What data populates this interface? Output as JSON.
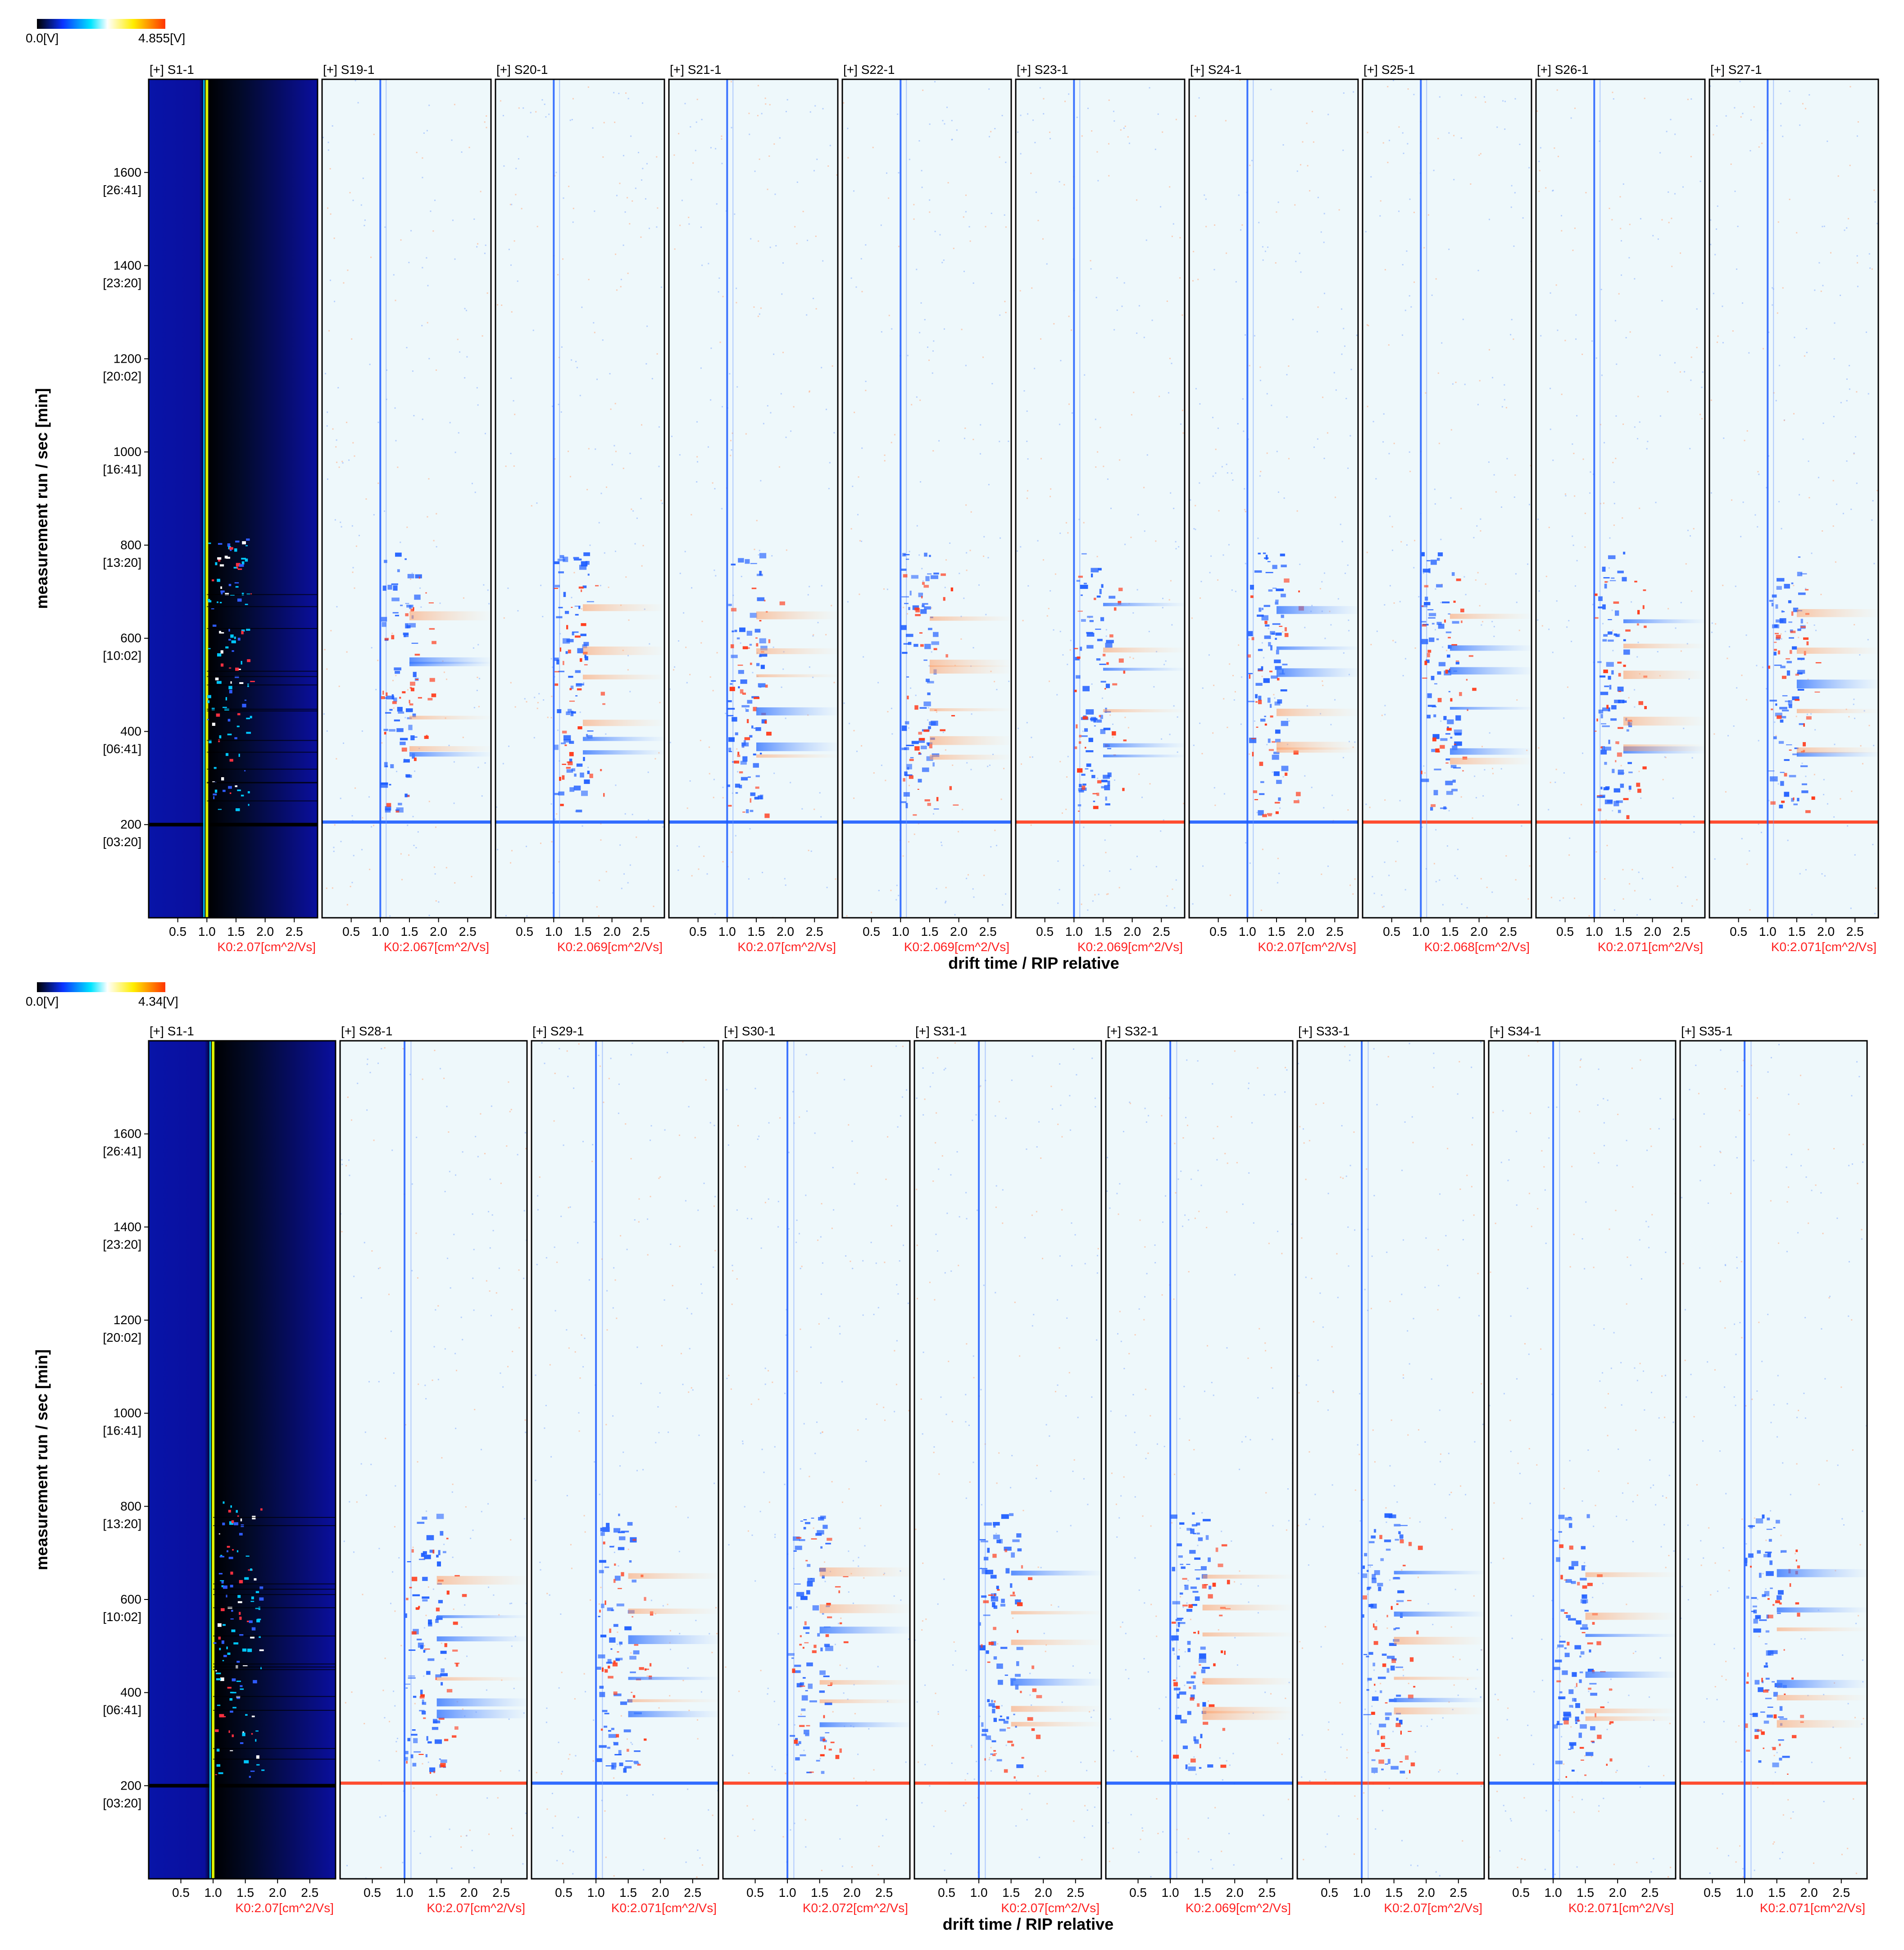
{
  "figure": {
    "panels": [
      {
        "colorbar": {
          "min_label": "0.0[V]",
          "max_label": "4.855[V]",
          "colors": [
            "#000000",
            "#0a32ff",
            "#00e5ff",
            "#ffffff",
            "#ffee00",
            "#ff3300"
          ]
        },
        "y_axis_label": "measurement run / sec [min]",
        "x_axis_label": "drift time / RIP relative",
        "samples": [
          {
            "title": "[+] S1-1",
            "k0": "K0:2.07[cm^2/Vs]",
            "reference": true
          },
          {
            "title": "[+] S19-1",
            "k0": "K0:2.067[cm^2/Vs]"
          },
          {
            "title": "[+] S20-1",
            "k0": "K0:2.069[cm^2/Vs]"
          },
          {
            "title": "[+] S21-1",
            "k0": "K0:2.07[cm^2/Vs]"
          },
          {
            "title": "[+] S22-1",
            "k0": "K0:2.069[cm^2/Vs]"
          },
          {
            "title": "[+] S23-1",
            "k0": "K0:2.069[cm^2/Vs]"
          },
          {
            "title": "[+] S24-1",
            "k0": "K0:2.07[cm^2/Vs]"
          },
          {
            "title": "[+] S25-1",
            "k0": "K0:2.068[cm^2/Vs]"
          },
          {
            "title": "[+] S26-1",
            "k0": "K0:2.071[cm^2/Vs]"
          },
          {
            "title": "[+] S27-1",
            "k0": "K0:2.071[cm^2/Vs]"
          }
        ]
      },
      {
        "colorbar": {
          "min_label": "0.0[V]",
          "max_label": "4.34[V]",
          "colors": [
            "#000000",
            "#0a32ff",
            "#00e5ff",
            "#ffffff",
            "#ffee00",
            "#ff3300"
          ]
        },
        "y_axis_label": "measurement run / sec [min]",
        "x_axis_label": "drift time / RIP relative",
        "samples": [
          {
            "title": "[+] S1-1",
            "k0": "K0:2.07[cm^2/Vs]",
            "reference": true
          },
          {
            "title": "[+] S28-1",
            "k0": "K0:2.07[cm^2/Vs]"
          },
          {
            "title": "[+] S29-1",
            "k0": "K0:2.071[cm^2/Vs]"
          },
          {
            "title": "[+] S30-1",
            "k0": "K0:2.072[cm^2/Vs]"
          },
          {
            "title": "[+] S31-1",
            "k0": "K0:2.07[cm^2/Vs]"
          },
          {
            "title": "[+] S32-1",
            "k0": "K0:2.069[cm^2/Vs]"
          },
          {
            "title": "[+] S33-1",
            "k0": "K0:2.07[cm^2/Vs]"
          },
          {
            "title": "[+] S34-1",
            "k0": "K0:2.071[cm^2/Vs]"
          },
          {
            "title": "[+] S35-1",
            "k0": "K0:2.071[cm^2/Vs]"
          }
        ]
      }
    ]
  },
  "chart_data": {
    "type": "heatmap",
    "x_ticks": [
      "0.5",
      "1.0",
      "1.5",
      "2.0",
      "2.5"
    ],
    "xlim": [
      0,
      2.9
    ],
    "y_ticks": [
      {
        "value": 200,
        "time": "[03:20]"
      },
      {
        "value": 400,
        "time": "[06:41]"
      },
      {
        "value": 600,
        "time": "[10:02]"
      },
      {
        "value": 800,
        "time": "[13:20]"
      },
      {
        "value": 1000,
        "time": "[16:41]"
      },
      {
        "value": 1200,
        "time": "[20:02]"
      },
      {
        "value": 1400,
        "time": "[23:20]"
      },
      {
        "value": 1600,
        "time": "[26:41]"
      }
    ],
    "ylim": [
      0,
      1800
    ],
    "rip_position": 1.0,
    "colors": {
      "reference_background": "#0a0f9e",
      "difference_background": "#eef8fb",
      "positive_difference": "#ff3a1a",
      "negative_difference": "#1c5cff",
      "k0_label": "#ff2020"
    }
  }
}
